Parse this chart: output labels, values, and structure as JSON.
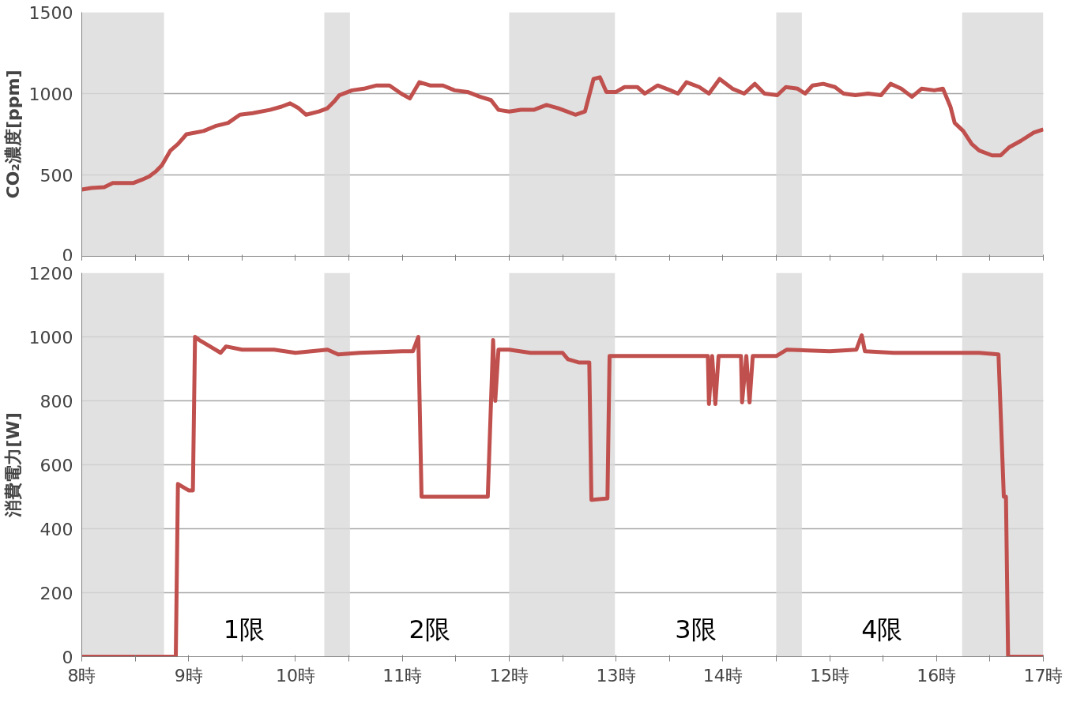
{
  "chart_data": [
    {
      "type": "line",
      "ylabel": "CO₂濃度[ppm]",
      "xlim": [
        8,
        17
      ],
      "ylim": [
        0,
        1500
      ],
      "yticks": [
        0,
        500,
        1000,
        1500
      ],
      "grid": "y",
      "tick_labels": "y",
      "line_style": "solid",
      "xticks": [
        8,
        {
          "value": 8.5,
          "label": null
        },
        9,
        {
          "value": 9.5,
          "label": null
        },
        10,
        {
          "value": 10.5,
          "label": null
        },
        11,
        {
          "value": 11.5,
          "label": null
        },
        12,
        {
          "value": 12.5,
          "label": null
        },
        13,
        {
          "value": 13.5,
          "label": null
        },
        14,
        {
          "value": 14.5,
          "label": null
        },
        15,
        {
          "value": 15.5,
          "label": null
        },
        16,
        {
          "value": 16.5,
          "label": null
        },
        17
      ],
      "bands": [
        {
          "axis": "x",
          "from": 8.0,
          "to": 8.77,
          "label": null,
          "color": "#d9d9d9"
        },
        {
          "axis": "x",
          "from": 10.27,
          "to": 10.51,
          "label": null,
          "color": "#d9d9d9"
        },
        {
          "axis": "x",
          "from": 12.0,
          "to": 12.99,
          "label": null,
          "color": "#d9d9d9"
        },
        {
          "axis": "x",
          "from": 14.5,
          "to": 14.74,
          "label": null,
          "color": "#d9d9d9"
        },
        {
          "axis": "x",
          "from": 16.24,
          "to": 17.0,
          "label": null,
          "color": "#d9d9d9"
        }
      ],
      "series": [
        {
          "color": "#c0504d",
          "x": [
            8.0,
            8.09,
            8.21,
            8.29,
            8.48,
            8.56,
            8.63,
            8.69,
            8.75,
            8.83,
            8.9,
            8.98,
            9.14,
            9.25,
            9.37,
            9.48,
            9.6,
            9.76,
            9.87,
            9.95,
            10.03,
            10.1,
            10.22,
            10.3,
            10.36,
            10.41,
            10.53,
            10.64,
            10.76,
            10.88,
            10.99,
            11.07,
            11.16,
            11.26,
            11.38,
            11.49,
            11.61,
            11.73,
            11.83,
            11.9,
            12.0,
            12.11,
            12.23,
            12.35,
            12.46,
            12.54,
            12.62,
            12.71,
            12.79,
            12.85,
            12.91,
            13.0,
            13.08,
            13.2,
            13.27,
            13.39,
            13.51,
            13.58,
            13.66,
            13.78,
            13.87,
            13.97,
            14.09,
            14.2,
            14.3,
            14.39,
            14.51,
            14.59,
            14.7,
            14.77,
            14.84,
            14.94,
            15.05,
            15.13,
            15.24,
            15.36,
            15.48,
            15.57,
            15.67,
            15.77,
            15.86,
            15.98,
            16.06,
            16.13,
            16.17,
            16.25,
            16.33,
            16.4,
            16.52,
            16.6,
            16.68,
            16.79,
            16.91,
            17.0
          ],
          "values": [
            410,
            420,
            425,
            450,
            450,
            470,
            490,
            520,
            560,
            650,
            690,
            750,
            770,
            800,
            820,
            870,
            880,
            900,
            920,
            940,
            910,
            870,
            890,
            910,
            950,
            990,
            1020,
            1030,
            1050,
            1050,
            1000,
            970,
            1070,
            1050,
            1050,
            1020,
            1010,
            980,
            960,
            900,
            890,
            900,
            900,
            930,
            910,
            890,
            870,
            890,
            1090,
            1100,
            1010,
            1010,
            1040,
            1040,
            1000,
            1050,
            1020,
            1000,
            1070,
            1040,
            1000,
            1090,
            1030,
            1000,
            1060,
            1000,
            990,
            1040,
            1030,
            1000,
            1050,
            1060,
            1040,
            1000,
            990,
            1000,
            990,
            1060,
            1030,
            980,
            1030,
            1020,
            1030,
            920,
            820,
            770,
            690,
            650,
            620,
            620,
            670,
            710,
            760,
            780
          ]
        }
      ]
    },
    {
      "type": "line",
      "ylabel": "消費電力[W]",
      "xlim": [
        8,
        17
      ],
      "ylim": [
        0,
        1200
      ],
      "yticks": [
        0,
        200,
        400,
        600,
        800,
        1000,
        1200
      ],
      "grid": "y",
      "line_style": "solid",
      "xticks": [
        {
          "value": 8,
          "label": "8時"
        },
        {
          "value": 8.5,
          "label": null
        },
        {
          "value": 9,
          "label": "9時"
        },
        {
          "value": 9.5,
          "label": null
        },
        {
          "value": 10,
          "label": "10時"
        },
        {
          "value": 10.5,
          "label": null
        },
        {
          "value": 11,
          "label": "11時"
        },
        {
          "value": 11.5,
          "label": null
        },
        {
          "value": 12,
          "label": "12時"
        },
        {
          "value": 12.5,
          "label": null
        },
        {
          "value": 13,
          "label": "13時"
        },
        {
          "value": 13.5,
          "label": null
        },
        {
          "value": 14,
          "label": "14時"
        },
        {
          "value": 14.5,
          "label": null
        },
        {
          "value": 15,
          "label": "15時"
        },
        {
          "value": 15.5,
          "label": null
        },
        {
          "value": 16,
          "label": "16時"
        },
        {
          "value": 16.5,
          "label": null
        },
        {
          "value": 17,
          "label": "17時"
        }
      ],
      "bands": [
        {
          "axis": "x",
          "from": 8.0,
          "to": 8.77,
          "label": null,
          "color": "#d9d9d9"
        },
        {
          "axis": "x",
          "from": 10.27,
          "to": 10.51,
          "label": null,
          "color": "#d9d9d9"
        },
        {
          "axis": "x",
          "from": 12.0,
          "to": 12.99,
          "label": null,
          "color": "#d9d9d9"
        },
        {
          "axis": "x",
          "from": 14.5,
          "to": 14.74,
          "label": null,
          "color": "#d9d9d9"
        },
        {
          "axis": "x",
          "from": 16.24,
          "to": 17.0,
          "label": null,
          "color": "#d9d9d9"
        }
      ],
      "annotations": [
        "1限",
        "2限",
        "3限",
        "4限"
      ],
      "series": [
        {
          "color": "#c0504d",
          "x": [
            8.0,
            8.88,
            8.9,
            9.0,
            9.04,
            9.06,
            9.1,
            9.2,
            9.3,
            9.35,
            9.5,
            9.8,
            10.0,
            10.3,
            10.4,
            10.6,
            11.0,
            11.1,
            11.15,
            11.18,
            11.3,
            11.5,
            11.8,
            11.85,
            11.87,
            11.9,
            12.0,
            12.2,
            12.4,
            12.5,
            12.55,
            12.65,
            12.75,
            12.77,
            12.92,
            12.94,
            13.2,
            13.5,
            13.86,
            13.87,
            13.9,
            13.93,
            13.96,
            14.0,
            14.17,
            14.18,
            14.22,
            14.25,
            14.28,
            14.5,
            14.6,
            15.0,
            15.25,
            15.3,
            15.33,
            15.6,
            16.0,
            16.2,
            16.4,
            16.58,
            16.63,
            16.65,
            16.67,
            17.0
          ],
          "values": [
            0,
            0,
            540,
            520,
            520,
            1000,
            990,
            970,
            950,
            970,
            960,
            960,
            950,
            960,
            945,
            950,
            955,
            955,
            1000,
            500,
            500,
            500,
            500,
            990,
            800,
            960,
            960,
            950,
            950,
            950,
            930,
            920,
            920,
            490,
            495,
            940,
            940,
            940,
            940,
            790,
            940,
            790,
            940,
            940,
            940,
            795,
            940,
            795,
            940,
            940,
            960,
            955,
            960,
            1005,
            955,
            950,
            950,
            950,
            950,
            945,
            500,
            500,
            0,
            0
          ]
        }
      ]
    }
  ]
}
